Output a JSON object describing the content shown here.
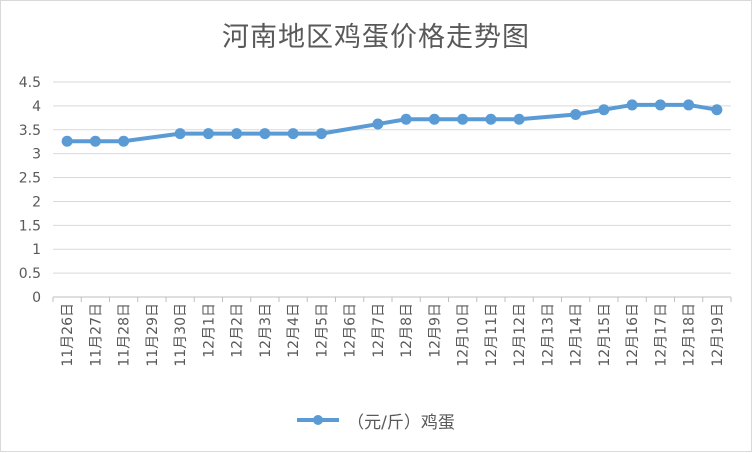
{
  "chart_data": {
    "type": "line",
    "title": "河南地区鸡蛋价格走势图",
    "categories": [
      "11月26日",
      "11月27日",
      "11月28日",
      "11月29日",
      "11月30日",
      "12月1日",
      "12月2日",
      "12月3日",
      "12月4日",
      "12月5日",
      "12月6日",
      "12月7日",
      "12月8日",
      "12月9日",
      "12月10日",
      "12月11日",
      "12月12日",
      "12月13日",
      "12月14日",
      "12月15日",
      "12月16日",
      "12月17日",
      "12月18日",
      "12月19日"
    ],
    "y_ticks": [
      "0",
      "0.5",
      "1",
      "1.5",
      "2",
      "2.5",
      "3",
      "3.5",
      "4",
      "4.5"
    ],
    "ylim": [
      0,
      4.5
    ],
    "grid": true,
    "legend_position": "bottom",
    "series": [
      {
        "name": "（元/斤）鸡蛋",
        "color": "#5b9bd5",
        "values": [
          3.26,
          3.26,
          3.26,
          null,
          3.42,
          3.42,
          3.42,
          3.42,
          3.42,
          3.42,
          null,
          3.62,
          3.72,
          3.72,
          3.72,
          3.72,
          3.72,
          null,
          3.82,
          3.92,
          4.02,
          4.02,
          4.02,
          3.92
        ]
      }
    ]
  }
}
